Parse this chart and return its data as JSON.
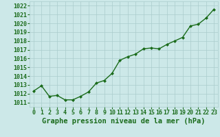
{
  "x": [
    0,
    1,
    2,
    3,
    4,
    5,
    6,
    7,
    8,
    9,
    10,
    11,
    12,
    13,
    14,
    15,
    16,
    17,
    18,
    19,
    20,
    21,
    22,
    23
  ],
  "y": [
    1012.3,
    1012.9,
    1011.7,
    1011.8,
    1011.3,
    1011.3,
    1011.7,
    1012.2,
    1013.2,
    1013.5,
    1014.3,
    1015.8,
    1016.2,
    1016.5,
    1017.1,
    1017.2,
    1017.1,
    1017.6,
    1018.0,
    1018.4,
    1019.7,
    1019.9,
    1020.6,
    1021.6
  ],
  "line_color": "#1a6b1a",
  "marker": "D",
  "marker_size": 2.0,
  "line_width": 1.0,
  "bg_color": "#cce8e8",
  "grid_color": "#aacccc",
  "xlabel": "Graphe pression niveau de la mer (hPa)",
  "xlabel_color": "#1a6b1a",
  "xlabel_fontsize": 7.5,
  "tick_color": "#1a6b1a",
  "tick_fontsize": 6.0,
  "ylim": [
    1010.5,
    1022.5
  ],
  "yticks": [
    1011,
    1012,
    1013,
    1014,
    1015,
    1016,
    1017,
    1018,
    1019,
    1020,
    1021,
    1022
  ],
  "xticks": [
    0,
    1,
    2,
    3,
    4,
    5,
    6,
    7,
    8,
    9,
    10,
    11,
    12,
    13,
    14,
    15,
    16,
    17,
    18,
    19,
    20,
    21,
    22,
    23
  ],
  "xlim": [
    -0.5,
    23.5
  ]
}
